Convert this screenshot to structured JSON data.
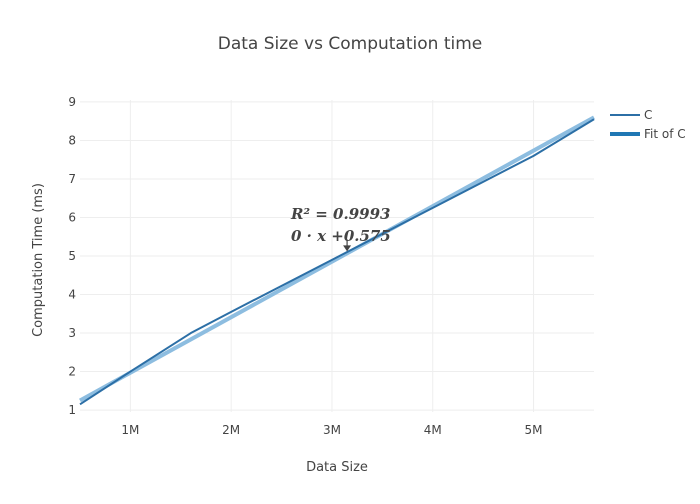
{
  "chart_data": {
    "type": "line",
    "title": "Data Size vs Computation time",
    "xlabel": "Data Size",
    "ylabel": "Computation Time (ms)",
    "xlim": [
      500000,
      5600000
    ],
    "ylim": [
      0.95,
      9.05
    ],
    "x_ticks": [
      1000000,
      2000000,
      3000000,
      4000000,
      5000000
    ],
    "x_tick_labels": [
      "1M",
      "2M",
      "3M",
      "4M",
      "5M"
    ],
    "y_ticks": [
      1,
      2,
      3,
      4,
      5,
      6,
      7,
      8,
      9
    ],
    "y_tick_labels": [
      "1",
      "2",
      "3",
      "4",
      "5",
      "6",
      "7",
      "8",
      "9"
    ],
    "grid": true,
    "legend_position": "top-right",
    "series": [
      {
        "name": "C",
        "color": "#2c6fa6",
        "x": [
          500000,
          1000000,
          1600000,
          2000000,
          3000000,
          4000000,
          5000000,
          5600000
        ],
        "y": [
          1.15,
          2.0,
          3.0,
          3.55,
          4.9,
          6.25,
          7.6,
          8.55
        ]
      },
      {
        "name": "Fit of C",
        "color": "#8dbde0",
        "legend_color": "#1f77b4",
        "x": [
          500000,
          5600000
        ],
        "y": [
          1.25,
          8.6
        ]
      }
    ],
    "annotations": [
      {
        "line1": "R² = 0.9993",
        "line2": "0 · x +0.575",
        "point_x": 3150000,
        "point_y": 5.12
      }
    ]
  }
}
